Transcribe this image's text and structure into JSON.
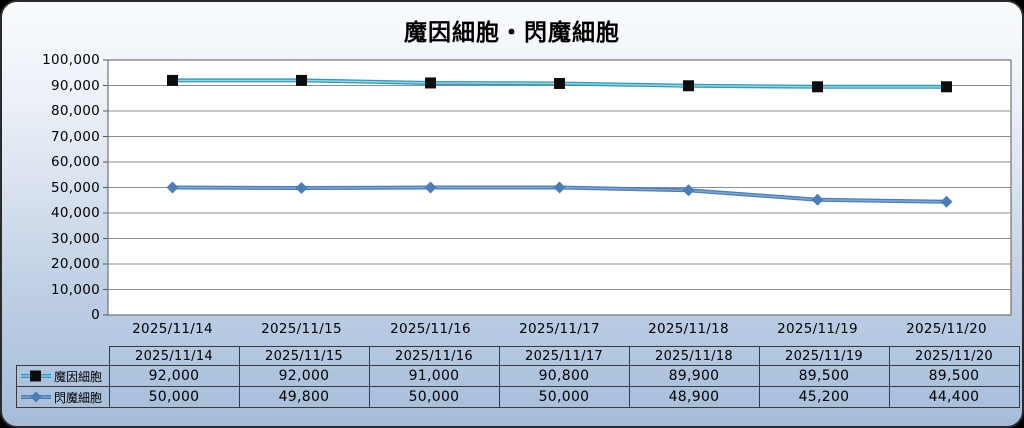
{
  "title": "魔因細胞・閃魔細胞",
  "chart_data": {
    "type": "line",
    "categories": [
      "2025/11/14",
      "2025/11/15",
      "2025/11/16",
      "2025/11/17",
      "2025/11/18",
      "2025/11/19",
      "2025/11/20"
    ],
    "series": [
      {
        "name": "魔因細胞",
        "values": [
          92000,
          92000,
          91000,
          90800,
          89900,
          89500,
          89500
        ],
        "line_color": "#2e9cb8",
        "line_highlight": "#8fd8ea",
        "marker": "square",
        "marker_color": "#0c0c0c"
      },
      {
        "name": "閃魔細胞",
        "values": [
          50000,
          49800,
          50000,
          50000,
          48900,
          45200,
          44400
        ],
        "line_color": "#4a7ebb",
        "line_highlight": "#7fa8d9",
        "marker": "diamond",
        "marker_color": "#4a7ebb"
      }
    ],
    "ylim": [
      0,
      100000
    ],
    "ytick_step": 10000,
    "ytick_labels": [
      "0",
      "10,000",
      "20,000",
      "30,000",
      "40,000",
      "50,000",
      "60,000",
      "70,000",
      "80,000",
      "90,000",
      "100,000"
    ],
    "grid": true,
    "gridline_color": "#8c8c8c",
    "plot_bg": "#ffffff",
    "plot_border_color": "#5a5a5a",
    "legend_position": "table-left"
  },
  "data_table": {
    "header": [
      "2025/11/14",
      "2025/11/15",
      "2025/11/16",
      "2025/11/17",
      "2025/11/18",
      "2025/11/19",
      "2025/11/20"
    ],
    "rows": [
      {
        "name": "魔因細胞",
        "values": [
          "92,000",
          "92,000",
          "91,000",
          "90,800",
          "89,900",
          "89,500",
          "89,500"
        ]
      },
      {
        "name": "閃魔細胞",
        "values": [
          "50,000",
          "49,800",
          "50,000",
          "50,000",
          "48,900",
          "45,200",
          "44,400"
        ]
      }
    ]
  }
}
